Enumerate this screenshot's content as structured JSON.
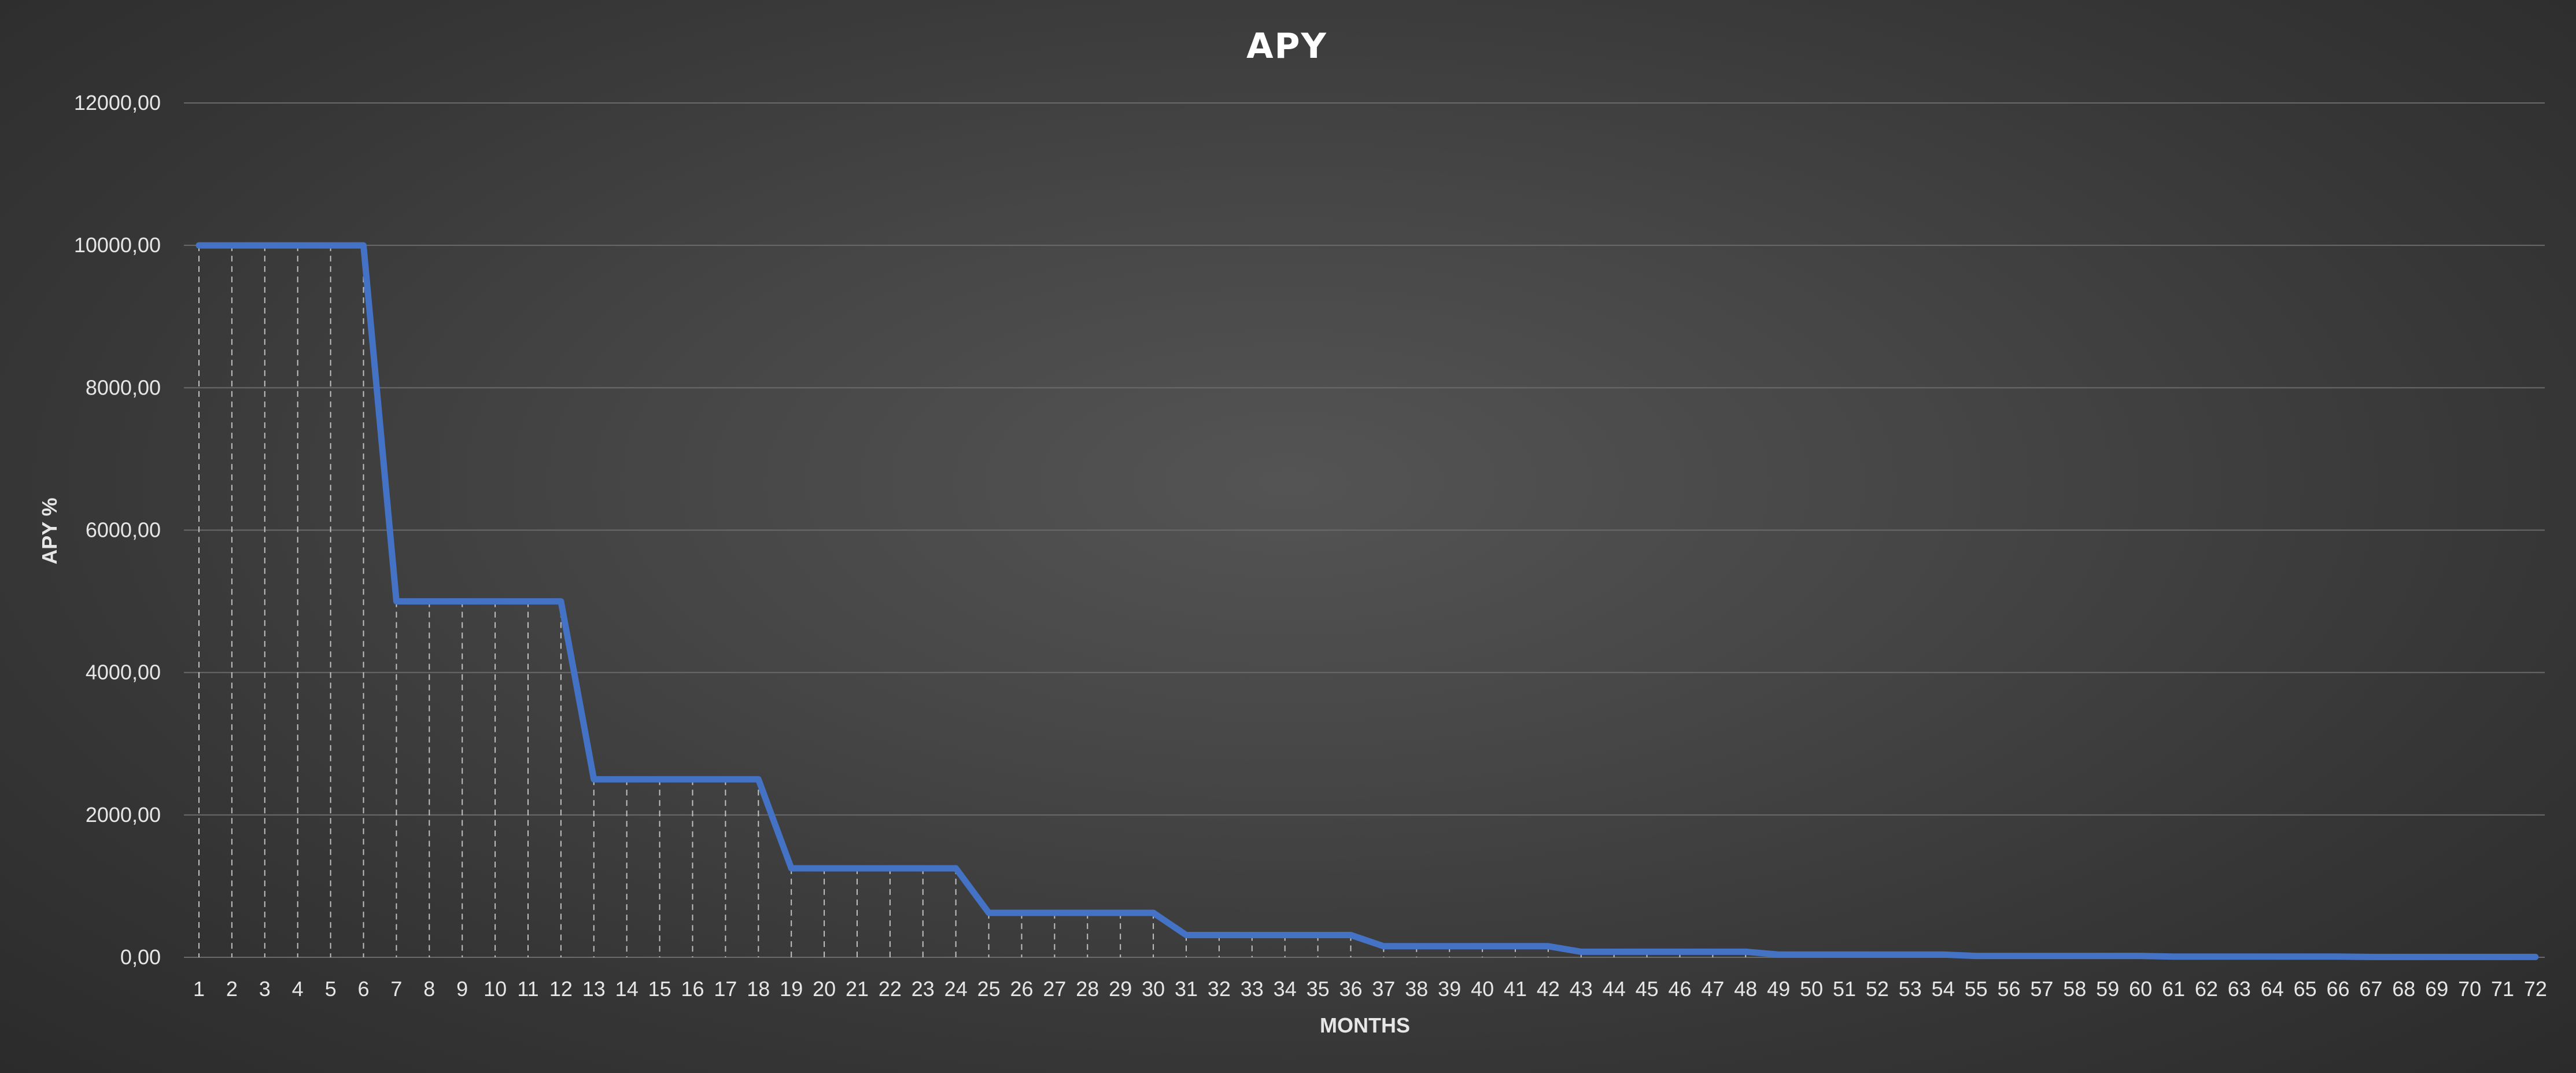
{
  "chart_data": {
    "type": "line",
    "title": "APY",
    "xlabel": "MONTHS",
    "ylabel": "APY %",
    "ylim": [
      0,
      12000
    ],
    "y_ticks": [
      "0,00",
      "2000,00",
      "4000,00",
      "6000,00",
      "8000,00",
      "10000,00",
      "12000,00"
    ],
    "grid": true,
    "drop_lines": true,
    "legend": "none",
    "colors": {
      "series": "#4472c4",
      "grid": "#6a6a6a",
      "drop_lines": "#d9d9d9"
    },
    "x": [
      1,
      2,
      3,
      4,
      5,
      6,
      7,
      8,
      9,
      10,
      11,
      12,
      13,
      14,
      15,
      16,
      17,
      18,
      19,
      20,
      21,
      22,
      23,
      24,
      25,
      26,
      27,
      28,
      29,
      30,
      31,
      32,
      33,
      34,
      35,
      36,
      37,
      38,
      39,
      40,
      41,
      42,
      43,
      44,
      45,
      46,
      47,
      48,
      49,
      50,
      51,
      52,
      53,
      54,
      55,
      56,
      57,
      58,
      59,
      60,
      61,
      62,
      63,
      64,
      65,
      66,
      67,
      68,
      69,
      70,
      71,
      72
    ],
    "series": [
      {
        "values": [
          10000,
          10000,
          10000,
          10000,
          10000,
          10000,
          5000,
          5000,
          5000,
          5000,
          5000,
          5000,
          2500,
          2500,
          2500,
          2500,
          2500,
          2500,
          1250,
          1250,
          1250,
          1250,
          1250,
          1250,
          625,
          625,
          625,
          625,
          625,
          625,
          312.5,
          312.5,
          312.5,
          312.5,
          312.5,
          312.5,
          156.25,
          156.25,
          156.25,
          156.25,
          156.25,
          156.25,
          78.13,
          78.13,
          78.13,
          78.13,
          78.13,
          78.13,
          39.06,
          39.06,
          39.06,
          39.06,
          39.06,
          39.06,
          19.53,
          19.53,
          19.53,
          19.53,
          19.53,
          19.53,
          9.77,
          9.77,
          9.77,
          9.77,
          9.77,
          9.77,
          4.88,
          4.88,
          4.88,
          4.88,
          4.88,
          4.88
        ]
      }
    ]
  }
}
